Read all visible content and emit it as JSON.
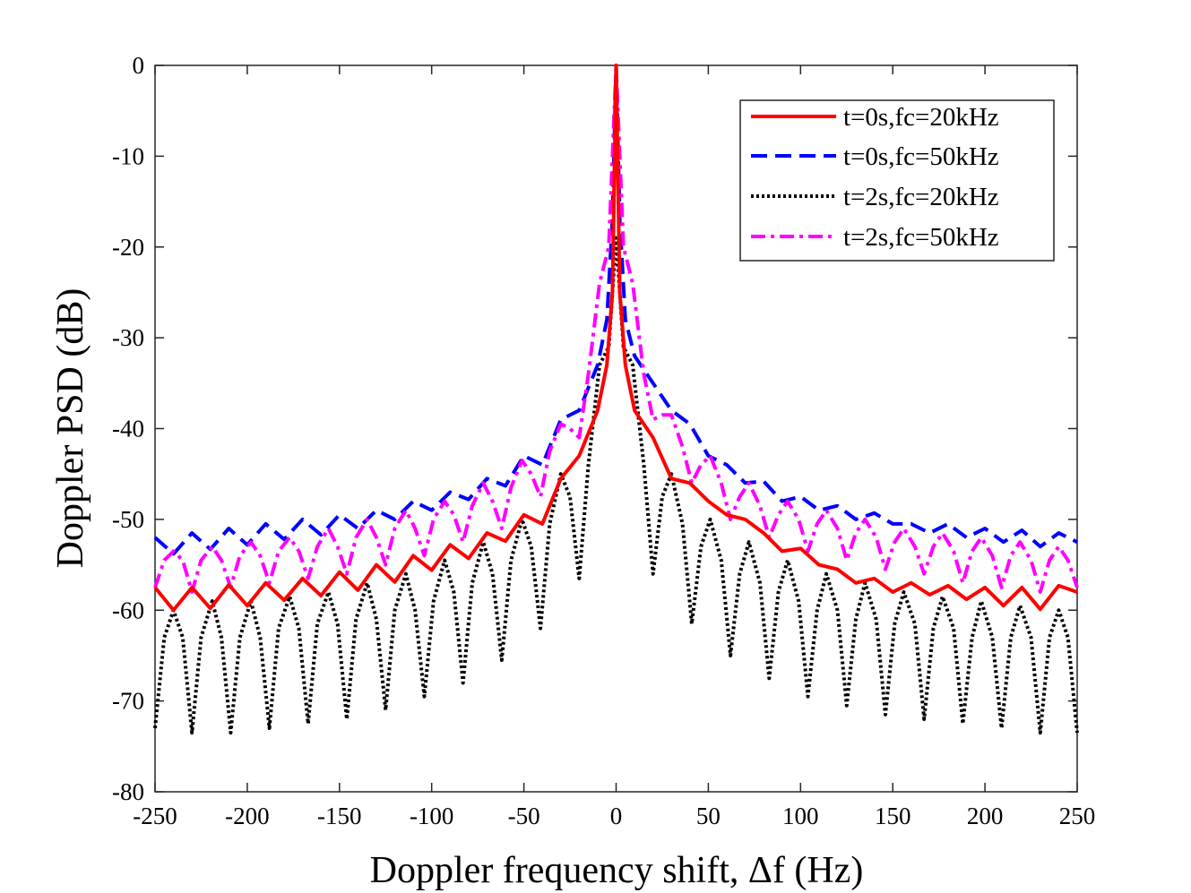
{
  "chart_data": {
    "type": "line",
    "title": "",
    "xlabel": "Doppler frequency shift, Δf (Hz)",
    "ylabel": "Doppler PSD (dB)",
    "xlim": [
      -250,
      250
    ],
    "ylim": [
      -80,
      0
    ],
    "xticks": [
      -250,
      -200,
      -150,
      -100,
      -50,
      0,
      50,
      100,
      150,
      200,
      250
    ],
    "yticks": [
      0,
      -10,
      -20,
      -30,
      -40,
      -50,
      -60,
      -70,
      -80
    ],
    "xtick_labels": [
      "-250",
      "-200",
      "-150",
      "-100",
      "-50",
      "0",
      "50",
      "100",
      "150",
      "200",
      "250"
    ],
    "ytick_labels": [
      "0",
      "-10",
      "-20",
      "-30",
      "-40",
      "-50",
      "-60",
      "-70",
      "-80"
    ],
    "legend_position": "top-right",
    "series": [
      {
        "name": "t=0s,fc=20kHz",
        "color": "#ff0000",
        "style": "solid",
        "x": [
          -250,
          -240,
          -230,
          -220,
          -210,
          -200,
          -190,
          -180,
          -170,
          -160,
          -150,
          -140,
          -130,
          -120,
          -110,
          -100,
          -90,
          -80,
          -70,
          -60,
          -50,
          -40,
          -30,
          -20,
          -10,
          -5,
          -2,
          0,
          2,
          5,
          10,
          20,
          30,
          40,
          50,
          60,
          70,
          80,
          90,
          100,
          110,
          120,
          130,
          140,
          150,
          160,
          170,
          180,
          190,
          200,
          210,
          220,
          230,
          240,
          250
        ],
        "y": [
          -57.5,
          -60.0,
          -57.5,
          -59.8,
          -57.2,
          -59.5,
          -57.0,
          -58.9,
          -56.5,
          -58.4,
          -55.8,
          -57.8,
          -55.0,
          -56.9,
          -54.0,
          -55.6,
          -52.8,
          -54.3,
          -51.5,
          -52.4,
          -49.5,
          -50.5,
          -45.5,
          -43.0,
          -38.0,
          -33.0,
          -25.0,
          0,
          -25.0,
          -33.0,
          -38.0,
          -41.0,
          -45.5,
          -46.0,
          -48.0,
          -49.5,
          -50.0,
          -51.5,
          -53.5,
          -53.2,
          -55.0,
          -55.5,
          -57.0,
          -56.5,
          -58.0,
          -57.0,
          -58.3,
          -57.3,
          -58.8,
          -57.5,
          -59.5,
          -57.5,
          -59.9,
          -57.3,
          -58.0
        ]
      },
      {
        "name": "t=0s,fc=50kHz",
        "color": "#0000ff",
        "style": "dashed",
        "x": [
          -250,
          -240,
          -230,
          -220,
          -210,
          -200,
          -190,
          -180,
          -170,
          -160,
          -150,
          -140,
          -130,
          -120,
          -110,
          -100,
          -90,
          -80,
          -70,
          -60,
          -50,
          -40,
          -30,
          -20,
          -10,
          -5,
          -2,
          0,
          2,
          5,
          10,
          20,
          30,
          40,
          50,
          60,
          70,
          80,
          90,
          100,
          110,
          120,
          130,
          140,
          150,
          160,
          170,
          180,
          190,
          200,
          210,
          220,
          230,
          240,
          250
        ],
        "y": [
          -52.0,
          -53.8,
          -51.5,
          -53.3,
          -51.0,
          -52.8,
          -50.5,
          -52.2,
          -50.0,
          -51.7,
          -49.5,
          -51.0,
          -49.0,
          -50.0,
          -48.0,
          -49.0,
          -47.0,
          -47.8,
          -45.5,
          -46.3,
          -43.0,
          -44.0,
          -39.0,
          -38.0,
          -33.0,
          -28.0,
          -17.0,
          0,
          -17.0,
          -28.0,
          -32.0,
          -35.0,
          -38.0,
          -39.5,
          -43.0,
          -44.0,
          -46.0,
          -45.8,
          -48.0,
          -47.5,
          -49.0,
          -48.5,
          -50.0,
          -49.3,
          -50.5,
          -50.5,
          -51.5,
          -50.5,
          -52.0,
          -51.0,
          -52.5,
          -51.2,
          -53.0,
          -51.5,
          -52.5
        ]
      },
      {
        "name": "t=2s,fc=20kHz",
        "color": "#000000",
        "style": "dotted",
        "x": [
          -250,
          -245,
          -240,
          -235,
          -230,
          -225,
          -219,
          -214,
          -209,
          -204,
          -198,
          -193,
          -188,
          -183,
          -177,
          -172,
          -167,
          -162,
          -156,
          -151,
          -146,
          -141,
          -135,
          -130,
          -125,
          -120,
          -114,
          -109,
          -104,
          -99,
          -93,
          -88,
          -83,
          -78,
          -72,
          -67,
          -62,
          -57,
          -51,
          -46,
          -41,
          -36,
          -30,
          -25,
          -20,
          -15,
          -9,
          -4,
          0,
          4,
          9,
          15,
          20,
          25,
          30,
          36,
          41,
          46,
          51,
          57,
          62,
          67,
          72,
          78,
          83,
          88,
          93,
          99,
          104,
          109,
          114,
          120,
          125,
          130,
          135,
          141,
          146,
          151,
          156,
          162,
          167,
          172,
          177,
          183,
          188,
          193,
          198,
          204,
          209,
          214,
          219,
          225,
          230,
          235,
          240,
          245,
          250
        ],
        "y": [
          -73.0,
          -63.0,
          -60.0,
          -63.0,
          -73.5,
          -63.0,
          -59.0,
          -63.0,
          -73.5,
          -63.0,
          -59.0,
          -63.0,
          -73.0,
          -62.0,
          -58.5,
          -62.0,
          -72.5,
          -61.5,
          -58.0,
          -61.5,
          -72.0,
          -61.0,
          -57.0,
          -61.0,
          -71.0,
          -60.0,
          -56.0,
          -60.0,
          -69.5,
          -59.0,
          -54.5,
          -58.0,
          -68.0,
          -57.0,
          -52.5,
          -56.0,
          -65.5,
          -54.5,
          -50.0,
          -53.0,
          -62.0,
          -50.5,
          -45.0,
          -47.5,
          -56.5,
          -44.0,
          -33.0,
          -31.0,
          -19.0,
          -31.0,
          -33.0,
          -44.0,
          -56.0,
          -47.5,
          -45.0,
          -50.5,
          -61.5,
          -53.0,
          -50.0,
          -54.5,
          -65.0,
          -56.0,
          -52.5,
          -57.0,
          -67.5,
          -58.0,
          -54.5,
          -59.0,
          -69.5,
          -60.0,
          -56.0,
          -60.0,
          -70.5,
          -61.0,
          -57.0,
          -61.0,
          -71.5,
          -61.5,
          -58.0,
          -61.5,
          -72.0,
          -62.0,
          -58.5,
          -62.0,
          -72.5,
          -63.0,
          -59.0,
          -63.0,
          -73.0,
          -63.0,
          -59.5,
          -63.0,
          -73.5,
          -63.0,
          -60.0,
          -63.0,
          -73.5
        ]
      },
      {
        "name": "t=2s,fc=50kHz",
        "color": "#ff00ff",
        "style": "dashdot",
        "x": [
          -250,
          -245,
          -240,
          -235,
          -230,
          -225,
          -219,
          -214,
          -209,
          -204,
          -198,
          -193,
          -188,
          -183,
          -177,
          -172,
          -167,
          -162,
          -156,
          -151,
          -146,
          -141,
          -135,
          -130,
          -125,
          -120,
          -114,
          -109,
          -104,
          -99,
          -93,
          -88,
          -83,
          -78,
          -72,
          -67,
          -62,
          -57,
          -51,
          -46,
          -41,
          -36,
          -30,
          -25,
          -20,
          -15,
          -9,
          -4,
          0,
          4,
          9,
          15,
          20,
          25,
          30,
          36,
          41,
          46,
          51,
          57,
          62,
          67,
          72,
          78,
          83,
          88,
          93,
          99,
          104,
          109,
          114,
          120,
          125,
          130,
          135,
          141,
          146,
          151,
          156,
          162,
          167,
          172,
          177,
          183,
          188,
          193,
          198,
          204,
          209,
          214,
          219,
          225,
          230,
          235,
          240,
          245,
          250
        ],
        "y": [
          -57.5,
          -54.5,
          -53.5,
          -54.5,
          -58.0,
          -54.5,
          -53.0,
          -54.5,
          -57.5,
          -54.0,
          -52.5,
          -54.0,
          -57.0,
          -53.5,
          -52.0,
          -53.5,
          -56.5,
          -53.0,
          -51.0,
          -53.0,
          -56.0,
          -52.0,
          -50.0,
          -52.0,
          -55.0,
          -51.0,
          -49.0,
          -51.0,
          -54.0,
          -50.0,
          -48.0,
          -49.5,
          -52.5,
          -48.5,
          -46.0,
          -48.0,
          -51.0,
          -46.5,
          -43.5,
          -45.0,
          -47.5,
          -42.5,
          -39.5,
          -40.0,
          -41.0,
          -34.0,
          -24.0,
          -20.0,
          0,
          -20.0,
          -24.0,
          -34.0,
          -39.0,
          -38.5,
          -38.5,
          -42.0,
          -46.0,
          -44.0,
          -43.0,
          -46.0,
          -50.0,
          -47.5,
          -46.0,
          -48.5,
          -52.0,
          -49.5,
          -48.0,
          -50.0,
          -53.5,
          -50.5,
          -49.0,
          -51.0,
          -54.5,
          -51.5,
          -50.0,
          -52.0,
          -55.5,
          -52.5,
          -51.0,
          -53.0,
          -56.0,
          -53.0,
          -51.5,
          -53.5,
          -57.0,
          -53.5,
          -52.0,
          -54.0,
          -57.5,
          -54.0,
          -52.5,
          -54.5,
          -58.0,
          -54.5,
          -53.0,
          -54.5,
          -57.5
        ]
      }
    ]
  }
}
